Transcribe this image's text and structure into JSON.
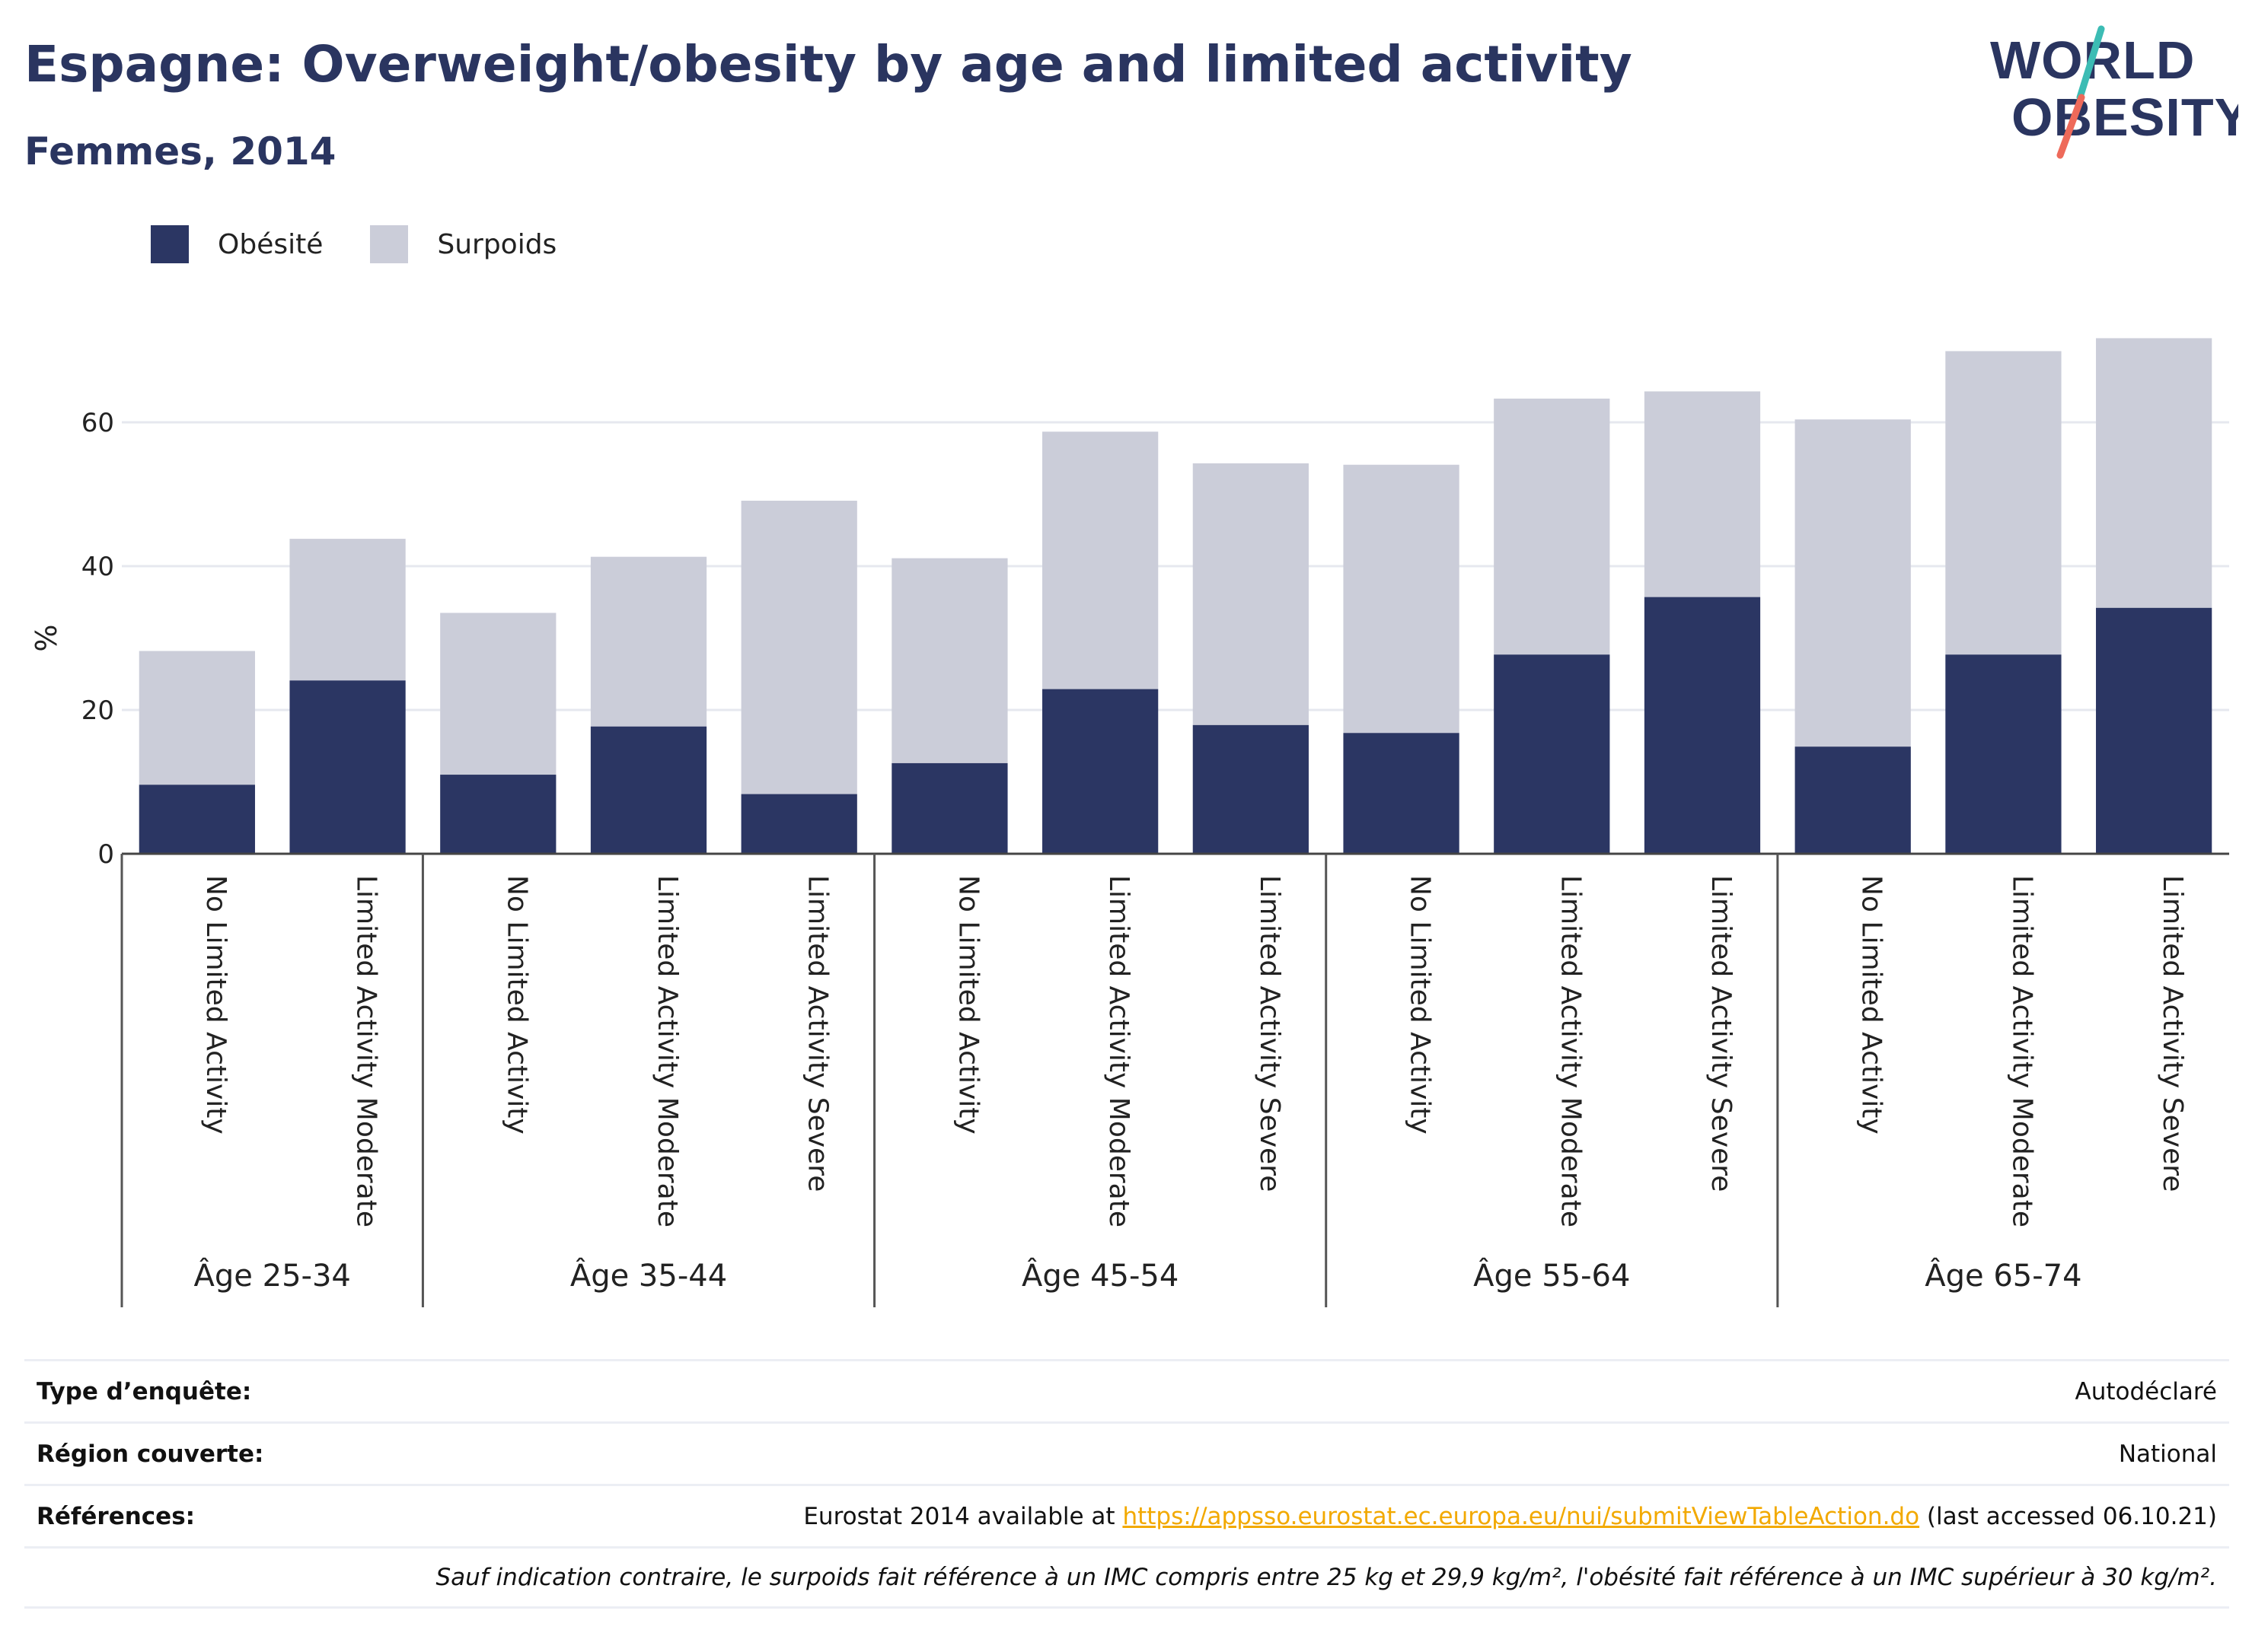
{
  "title": "Espagne: Overweight/obesity by age and limited activity",
  "subtitle": "Femmes, 2014",
  "logo": {
    "line1": "WORLD",
    "line2": "OBESITY"
  },
  "colors": {
    "obesity": "#2b3663",
    "overweight": "#cbcdd9",
    "title": "#2a3560",
    "link": "#f2a900",
    "logo_teal": "#3cbcb4",
    "logo_red": "#ee6a5a"
  },
  "legend": [
    {
      "label": "Obésité",
      "color": "#2b3663"
    },
    {
      "label": "Surpoids",
      "color": "#cbcdd9"
    }
  ],
  "chart_data": {
    "type": "bar",
    "stacked": true,
    "ylabel": "%",
    "ylim": [
      0,
      75
    ],
    "yticks": [
      0,
      20,
      40,
      60
    ],
    "grid": true,
    "legend_position": "top-left",
    "groups": [
      {
        "label": "Âge 25-34",
        "categories": [
          "No Limited Activity",
          "Limited Activity Moderate"
        ]
      },
      {
        "label": "Âge 35-44",
        "categories": [
          "No Limited Activity",
          "Limited Activity Moderate",
          "Limited Activity Severe"
        ]
      },
      {
        "label": "Âge 45-54",
        "categories": [
          "No Limited Activity",
          "Limited Activity Moderate",
          "Limited Activity Severe"
        ]
      },
      {
        "label": "Âge 55-64",
        "categories": [
          "No Limited Activity",
          "Limited Activity Moderate",
          "Limited Activity Severe"
        ]
      },
      {
        "label": "Âge 65-74",
        "categories": [
          "No Limited Activity",
          "Limited Activity Moderate",
          "Limited Activity Severe"
        ]
      }
    ],
    "series": [
      {
        "name": "Obésité",
        "values": [
          9.6,
          24.1,
          11.0,
          17.7,
          8.3,
          12.6,
          22.9,
          17.9,
          16.8,
          27.7,
          35.7,
          14.9,
          27.7,
          34.2
        ]
      },
      {
        "name": "Surpoids",
        "values": [
          18.6,
          19.7,
          22.5,
          23.6,
          40.8,
          28.5,
          35.8,
          36.4,
          37.3,
          35.6,
          28.6,
          45.5,
          42.2,
          37.5
        ]
      }
    ]
  },
  "info": {
    "survey_type_label": "Type d’enquête:",
    "survey_type_value": "Autodéclaré",
    "region_label": "Région couverte:",
    "region_value": "National",
    "references_label": "Références:",
    "references_prefix": "Eurostat 2014 available at ",
    "references_link": "https://appsso.eurostat.ec.europa.eu/nui/submitViewTableAction.do",
    "references_suffix": " (last accessed 06.10.21)",
    "note": "Sauf indication contraire, le surpoids fait référence à un IMC compris entre 25 kg et 29,9 kg/m², l'obésité fait référence à un IMC supérieur à 30 kg/m²."
  }
}
